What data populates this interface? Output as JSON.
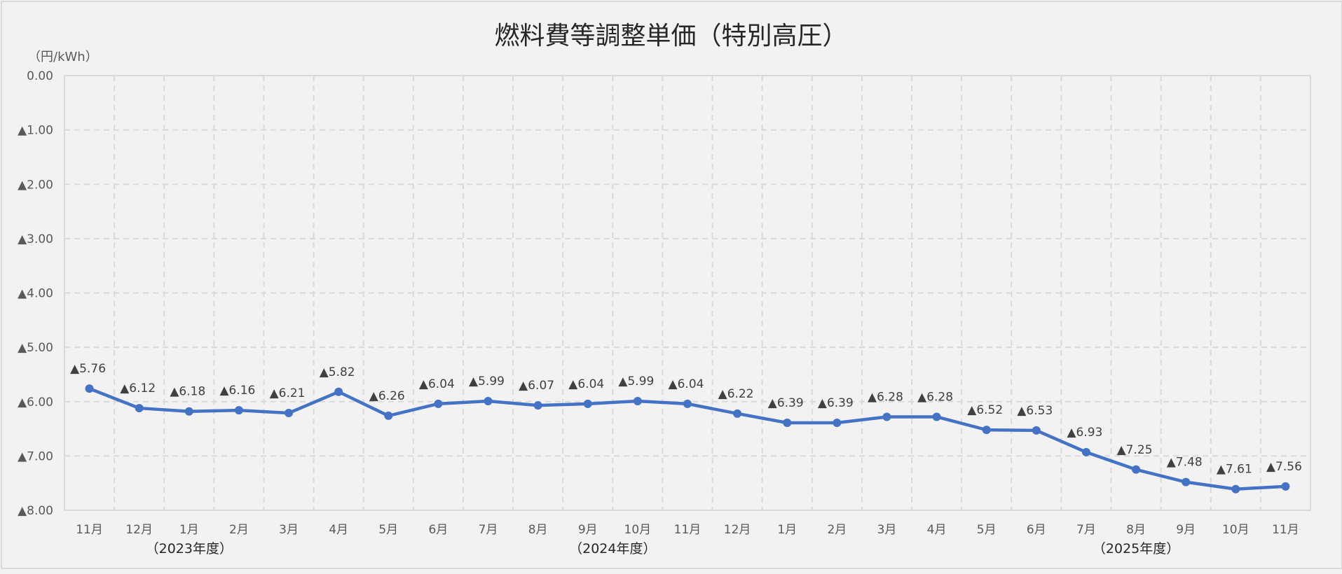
{
  "chart_data": {
    "type": "line",
    "title": "燃料費等調整単価（特別高圧）",
    "ylabel": "（円/kWh）",
    "xlabel": "",
    "ylim": [
      0,
      -8
    ],
    "y_ticks": [
      "0.00",
      "▲1.00",
      "▲2.00",
      "▲3.00",
      "▲4.00",
      "▲5.00",
      "▲6.00",
      "▲7.00",
      "▲8.00"
    ],
    "y_tick_values": [
      0,
      -1,
      -2,
      -3,
      -4,
      -5,
      -6,
      -7,
      -8
    ],
    "grid": true,
    "legend": null,
    "categories": [
      "11月",
      "12月",
      "1月",
      "2月",
      "3月",
      "4月",
      "5月",
      "6月",
      "7月",
      "8月",
      "9月",
      "10月",
      "11月",
      "12月",
      "1月",
      "2月",
      "3月",
      "4月",
      "5月",
      "6月",
      "7月",
      "8月",
      "9月",
      "10月",
      "11月"
    ],
    "fiscal_year_labels": [
      {
        "label": "（2023年度）",
        "category_index": 2
      },
      {
        "label": "（2024年度）",
        "category_index": 10.5
      },
      {
        "label": "（2025年度）",
        "category_index": 21
      }
    ],
    "series": [
      {
        "name": "燃料費等調整単価",
        "color": "#4472c4",
        "values": [
          -5.76,
          -6.12,
          -6.18,
          -6.16,
          -6.21,
          -5.82,
          -6.26,
          -6.04,
          -5.99,
          -6.07,
          -6.04,
          -5.99,
          -6.04,
          -6.22,
          -6.39,
          -6.39,
          -6.28,
          -6.28,
          -6.52,
          -6.53,
          -6.93,
          -7.25,
          -7.48,
          -7.61,
          -7.56
        ],
        "data_labels": [
          "▲5.76",
          "▲6.12",
          "▲6.18",
          "▲6.16",
          "▲6.21",
          "▲5.82",
          "▲6.26",
          "▲6.04",
          "▲5.99",
          "▲6.07",
          "▲6.04",
          "▲5.99",
          "▲6.04",
          "▲6.22",
          "▲6.39",
          "▲6.39",
          "▲6.28",
          "▲6.28",
          "▲6.52",
          "▲6.53",
          "▲6.93",
          "▲7.25",
          "▲7.48",
          "▲7.61",
          "▲7.56"
        ]
      }
    ]
  }
}
